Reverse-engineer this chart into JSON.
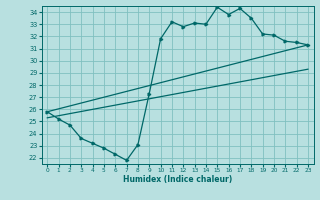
{
  "xlabel": "Humidex (Indice chaleur)",
  "bg_color": "#b8e0e0",
  "line_color": "#006868",
  "grid_color": "#80c0c0",
  "xlim": [
    -0.5,
    23.5
  ],
  "ylim": [
    21.5,
    34.5
  ],
  "xticks": [
    0,
    1,
    2,
    3,
    4,
    5,
    6,
    7,
    8,
    9,
    10,
    11,
    12,
    13,
    14,
    15,
    16,
    17,
    18,
    19,
    20,
    21,
    22,
    23
  ],
  "yticks": [
    22,
    23,
    24,
    25,
    26,
    27,
    28,
    29,
    30,
    31,
    32,
    33,
    34
  ],
  "curve1_x": [
    0,
    1,
    2,
    3,
    4,
    5,
    6,
    7,
    8,
    9,
    10,
    11,
    12,
    13,
    14,
    15,
    16,
    17,
    18,
    19,
    20,
    21,
    22,
    23
  ],
  "curve1_y": [
    25.8,
    25.2,
    24.7,
    23.6,
    23.2,
    22.8,
    22.3,
    21.8,
    23.1,
    27.3,
    31.8,
    33.2,
    32.8,
    33.1,
    33.0,
    34.4,
    33.8,
    34.3,
    33.5,
    32.2,
    32.1,
    31.6,
    31.5,
    31.3
  ],
  "line1_x": [
    0,
    23
  ],
  "line1_y": [
    25.8,
    31.3
  ],
  "line2_x": [
    0,
    23
  ],
  "line2_y": [
    25.3,
    29.3
  ]
}
